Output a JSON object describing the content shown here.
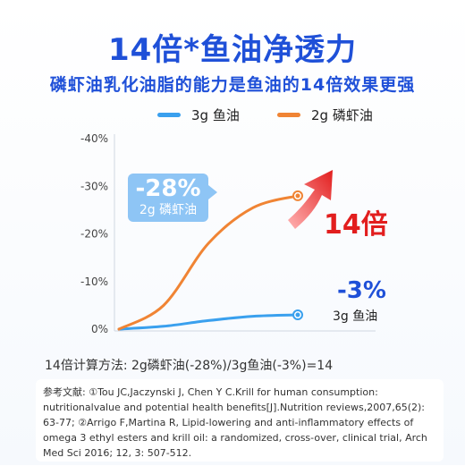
{
  "header": {
    "title": "14倍*鱼油净透力",
    "subtitle": "磷虾油乳化油脂的能力是鱼油的14倍效果更强"
  },
  "chart_data": {
    "type": "line",
    "title": "14倍*鱼油净透力",
    "subtitle": "磷虾油乳化油脂的能力是鱼油的14倍效果更强",
    "xlabel": "",
    "ylabel": "",
    "y_ticks": [
      "-40%",
      "-30%",
      "-20%",
      "-10%",
      "0%"
    ],
    "y_tick_values": [
      -40,
      -30,
      -20,
      -10,
      0
    ],
    "ylim": [
      0,
      -40
    ],
    "x": [
      0,
      0.25,
      0.5,
      0.75,
      1
    ],
    "series": [
      {
        "name": "3g 鱼油",
        "color": "#3aa0ee",
        "values": [
          0,
          -0.6,
          -1.8,
          -2.7,
          -3
        ]
      },
      {
        "name": "2g 磷虾油",
        "color": "#f08434",
        "values": [
          0,
          -5,
          -18,
          -25.5,
          -28
        ]
      }
    ],
    "legend_position": "top",
    "grid": false,
    "annotations": {
      "krill_value": "-28%",
      "krill_label": "2g 磷虾油",
      "fish_value": "-3%",
      "fish_label": "3g 鱼油",
      "multiplier": "14倍"
    }
  },
  "formula": "14倍计算方法: 2g磷虾油(-28%)/3g鱼油(-3%)=14",
  "references": "参考文献: ①Tou JC,Jaczynski J, Chen Y C.Krill for human consumption: nutritionalvalue and potential health benefits[J].Nutrition reviews,2007,65(2): 63-77; ②Arrigo F,Martina R, Lipid-lowering and anti-inflammatory effects of omega 3 ethyl esters and krill oil: a randomized, cross-over, clinical trial, Arch Med Sci 2016; 12, 3: 507-512.",
  "colors": {
    "title_blue": "#1f50d8",
    "krill_orange": "#f08434",
    "fish_blue": "#3aa0ee",
    "callout_bg": "#8ec5f5",
    "arrow_red": "#e21e1e"
  }
}
